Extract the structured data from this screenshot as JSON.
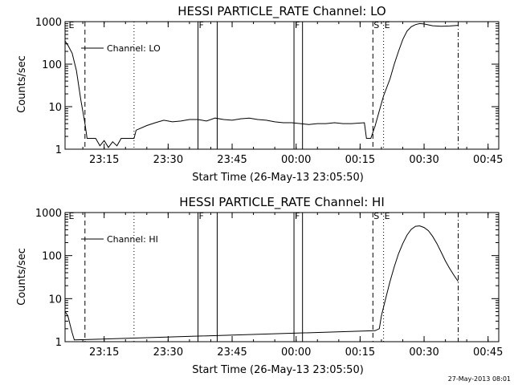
{
  "chart_data": [
    {
      "type": "line",
      "title": "HESSI PARTICLE_RATE Channel: LO",
      "xlabel": "Start Time (26-May-13 23:05:50)",
      "ylabel": "Counts/sec",
      "yscale": "log",
      "ylim": [
        1,
        1000
      ],
      "xlim": [
        "23:05:50",
        "00:47:30"
      ],
      "x_ticks": [
        "23:15",
        "23:30",
        "23:45",
        "00:00",
        "00:15",
        "00:30",
        "00:45"
      ],
      "y_ticks": [
        "1",
        "10",
        "100",
        "1000"
      ],
      "legend": {
        "label": "Channel: LO",
        "placement": "top-left"
      },
      "event_markers": [
        {
          "label": "E",
          "time": "23:06:30",
          "style": "none"
        },
        {
          "label": "",
          "time": "23:10:30",
          "style": "dashed"
        },
        {
          "label": "",
          "time": "23:22:00",
          "style": "dotted"
        },
        {
          "label": "F",
          "time": "23:37:00",
          "style": "solid"
        },
        {
          "label": "",
          "time": "23:41:30",
          "style": "solid"
        },
        {
          "label": "F",
          "time": "23:59:30",
          "style": "solid"
        },
        {
          "label": "",
          "time": "00:01:30",
          "style": "solid"
        },
        {
          "label": "S",
          "time": "00:18:00",
          "style": "dashed"
        },
        {
          "label": "E",
          "time": "00:20:30",
          "style": "dotted"
        },
        {
          "label": "",
          "time": "00:38:00",
          "style": "dashdot"
        }
      ],
      "series": [
        {
          "x": [
            "23:05:50",
            "23:06:30",
            "23:07:30",
            "23:08:30",
            "23:09:30",
            "23:10:30",
            "23:11:00",
            "23:13:00",
            "23:14:00",
            "23:15:00",
            "23:16:00",
            "23:17:00",
            "23:18:00",
            "23:19:00",
            "23:20:00",
            "23:22:00",
            "23:22:30",
            "23:25:00",
            "23:27:00",
            "23:29:00",
            "23:31:00",
            "23:33:00",
            "23:35:00",
            "23:37:00",
            "23:39:00",
            "23:41:00",
            "23:43:00",
            "23:45:00",
            "23:47:00",
            "23:49:00",
            "23:51:00",
            "23:53:00",
            "23:55:00",
            "23:57:00",
            "23:59:00",
            "00:01:00",
            "00:03:00",
            "00:05:00",
            "00:07:00",
            "00:09:00",
            "00:11:00",
            "00:13:00",
            "00:16:00",
            "00:16:30",
            "00:17:30",
            "00:18:30",
            "00:19:30",
            "00:20:30",
            "00:22:00",
            "00:23:00",
            "00:24:00",
            "00:25:00",
            "00:26:00",
            "00:27:00",
            "00:28:00",
            "00:29:00",
            "00:30:00",
            "00:32:00",
            "00:34:00",
            "00:36:00",
            "00:38:00"
          ],
          "y": [
            350,
            280,
            180,
            70,
            15,
            4,
            1.8,
            1.8,
            1.2,
            1.6,
            1.1,
            1.5,
            1.2,
            1.8,
            1.8,
            1.8,
            2.8,
            3.6,
            4.2,
            4.8,
            4.4,
            4.6,
            5.0,
            5.0,
            4.6,
            5.4,
            5.0,
            4.8,
            5.2,
            5.4,
            5.0,
            4.8,
            4.4,
            4.2,
            4.2,
            4.0,
            3.8,
            4.0,
            4.0,
            4.2,
            4.0,
            4.0,
            4.2,
            1.8,
            1.8,
            3.5,
            8,
            18,
            45,
            100,
            200,
            380,
            600,
            760,
            850,
            900,
            880,
            800,
            780,
            790,
            820
          ]
        }
      ]
    },
    {
      "type": "line",
      "title": "HESSI PARTICLE_RATE Channel: HI",
      "xlabel": "Start Time (26-May-13 23:05:50)",
      "ylabel": "Counts/sec",
      "yscale": "log",
      "ylim": [
        1,
        1000
      ],
      "xlim": [
        "23:05:50",
        "00:47:30"
      ],
      "x_ticks": [
        "23:15",
        "23:30",
        "23:45",
        "00:00",
        "00:15",
        "00:30",
        "00:45"
      ],
      "y_ticks": [
        "1",
        "10",
        "100",
        "1000"
      ],
      "legend": {
        "label": "Channel: HI",
        "placement": "top-left"
      },
      "event_markers": [
        {
          "label": "E",
          "time": "23:06:30",
          "style": "none"
        },
        {
          "label": "",
          "time": "23:10:30",
          "style": "dashed"
        },
        {
          "label": "",
          "time": "23:22:00",
          "style": "dotted"
        },
        {
          "label": "F",
          "time": "23:37:00",
          "style": "solid"
        },
        {
          "label": "",
          "time": "23:41:30",
          "style": "solid"
        },
        {
          "label": "F",
          "time": "23:59:30",
          "style": "solid"
        },
        {
          "label": "",
          "time": "00:01:30",
          "style": "solid"
        },
        {
          "label": "S",
          "time": "00:18:00",
          "style": "dashed"
        },
        {
          "label": "E",
          "time": "00:20:30",
          "style": "dotted"
        },
        {
          "label": "",
          "time": "00:38:00",
          "style": "dashdot"
        }
      ],
      "series": [
        {
          "x": [
            "23:05:50",
            "23:06:30",
            "23:07:00",
            "23:07:30",
            "23:08:00",
            "00:18:30",
            "00:19:30",
            "00:20:00",
            "00:21:00",
            "00:22:00",
            "00:23:00",
            "00:24:00",
            "00:25:00",
            "00:26:00",
            "00:27:00",
            "00:28:00",
            "00:29:00",
            "00:30:00",
            "00:31:00",
            "00:32:00",
            "00:33:00",
            "00:34:00",
            "00:35:00",
            "00:36:00",
            "00:37:00",
            "00:38:00"
          ],
          "y": [
            5,
            4,
            2.5,
            1.6,
            1.1,
            1.8,
            2,
            4,
            10,
            25,
            55,
            110,
            190,
            300,
            410,
            480,
            490,
            450,
            380,
            280,
            190,
            120,
            75,
            50,
            35,
            25
          ]
        }
      ]
    }
  ],
  "footer": {
    "timestamp": "27-May-2013 08:01"
  }
}
